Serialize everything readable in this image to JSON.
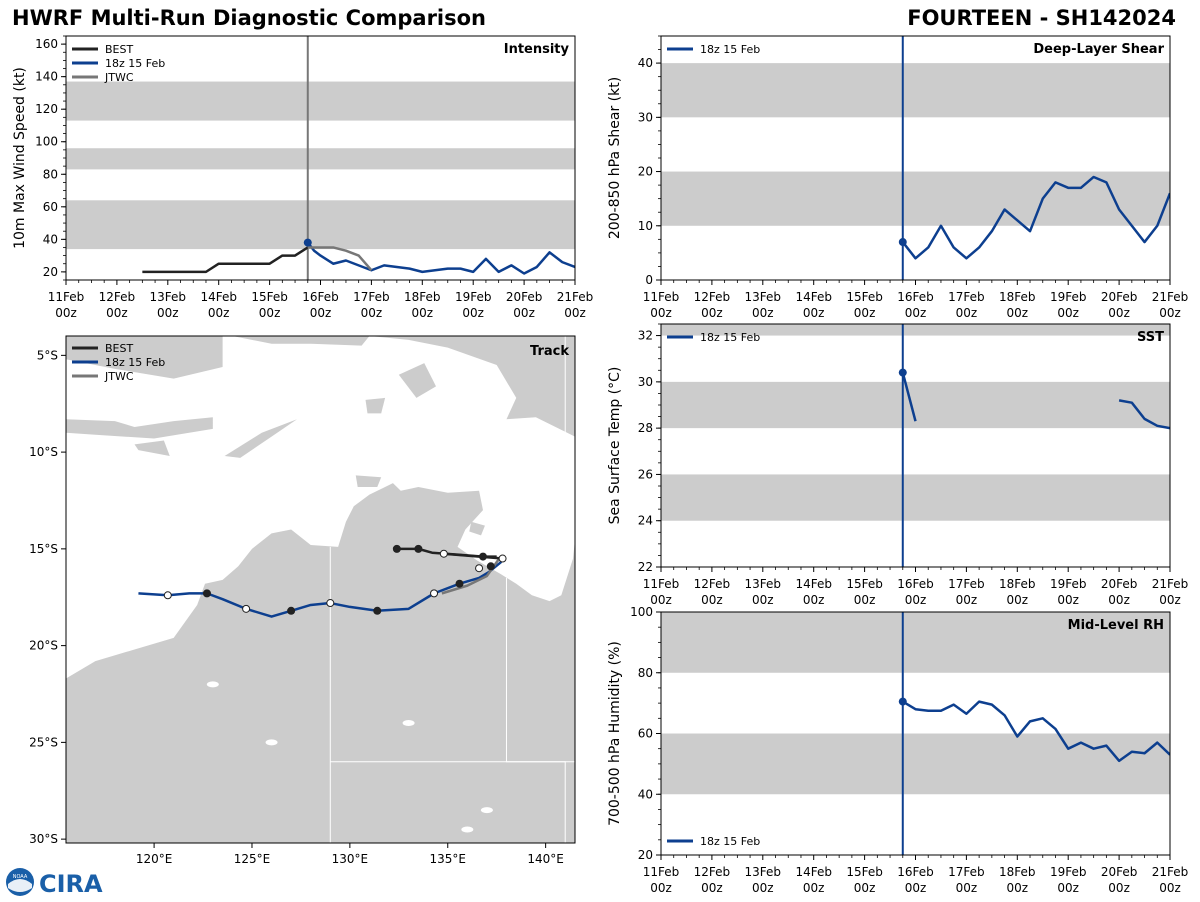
{
  "header": {
    "title_left": "HWRF Multi-Run Diagnostic Comparison",
    "title_right": "FOURTEEN - SH142024"
  },
  "logo": {
    "text": "CIRA",
    "badge_text": "NOAA"
  },
  "colors": {
    "best": "#222222",
    "hwrf_18z": "#0d3f8f",
    "jtwc": "#777777",
    "band": "#cccccc",
    "land": "#cccccc",
    "border": "#ffffff",
    "init_line_intensity": "#777777",
    "init_line_other": "#0d3f8f"
  },
  "time_axis": {
    "ticks": [
      {
        "line1": "11Feb",
        "line2": "00z"
      },
      {
        "line1": "12Feb",
        "line2": "00z"
      },
      {
        "line1": "13Feb",
        "line2": "00z"
      },
      {
        "line1": "14Feb",
        "line2": "00z"
      },
      {
        "line1": "15Feb",
        "line2": "00z"
      },
      {
        "line1": "16Feb",
        "line2": "00z"
      },
      {
        "line1": "17Feb",
        "line2": "00z"
      },
      {
        "line1": "18Feb",
        "line2": "00z"
      },
      {
        "line1": "19Feb",
        "line2": "00z"
      },
      {
        "line1": "20Feb",
        "line2": "00z"
      },
      {
        "line1": "21Feb",
        "line2": "00z"
      }
    ],
    "range": [
      0,
      240
    ],
    "units": "hours since 11Feb 00z",
    "init_hour": 114
  },
  "chart_data": [
    {
      "id": "intensity",
      "type": "line",
      "title": "Intensity",
      "xlabel": "",
      "ylabel": "10m Max Wind Speed (kt)",
      "ylim": [
        15,
        165
      ],
      "yticks": [
        20,
        40,
        60,
        80,
        100,
        120,
        140,
        160
      ],
      "bands": [
        [
          34,
          64
        ],
        [
          83,
          96
        ],
        [
          113,
          137
        ]
      ],
      "legend": [
        "BEST",
        "18z 15 Feb",
        "JTWC"
      ],
      "legend_position": "top-left",
      "init_marker": 38,
      "series": [
        {
          "name": "BEST",
          "color_key": "best",
          "x": [
            36,
            42,
            48,
            54,
            60,
            66,
            72,
            78,
            84,
            90,
            96,
            102,
            108,
            114
          ],
          "y": [
            20,
            20,
            20,
            20,
            20,
            20,
            25,
            25,
            25,
            25,
            25,
            30,
            30,
            35
          ]
        },
        {
          "name": "18z 15 Feb",
          "color_key": "hwrf_18z",
          "x": [
            114,
            117,
            120,
            126,
            132,
            138,
            144,
            150,
            156,
            162,
            168,
            174,
            180,
            186,
            192,
            198,
            204,
            210,
            216,
            222,
            228,
            234,
            240
          ],
          "y": [
            38,
            33,
            30,
            25,
            27,
            24,
            21,
            24,
            23,
            22,
            20,
            21,
            22,
            22,
            20,
            28,
            20,
            24,
            19,
            23,
            32,
            26,
            23
          ]
        },
        {
          "name": "JTWC",
          "color_key": "jtwc",
          "x": [
            114,
            120,
            126,
            132,
            138,
            144
          ],
          "y": [
            35,
            35,
            35,
            33,
            30,
            21
          ]
        }
      ]
    },
    {
      "id": "shear",
      "type": "line",
      "title": "Deep-Layer Shear",
      "xlabel": "",
      "ylabel": "200-850 hPa Shear (kt)",
      "ylim": [
        0,
        45
      ],
      "yticks": [
        0,
        10,
        20,
        30,
        40
      ],
      "bands": [
        [
          10,
          20
        ],
        [
          30,
          40
        ]
      ],
      "legend": [
        "18z 15 Feb"
      ],
      "legend_position": "top-left",
      "init_marker": 7,
      "series": [
        {
          "name": "18z 15 Feb",
          "color_key": "hwrf_18z",
          "x": [
            114,
            120,
            126,
            132,
            138,
            144,
            150,
            156,
            162,
            168,
            174,
            180,
            186,
            192,
            198,
            204,
            210,
            216,
            222,
            228,
            234,
            240
          ],
          "y": [
            7,
            4,
            6,
            10,
            6,
            4,
            6,
            9,
            13,
            11,
            9,
            15,
            18,
            17,
            17,
            19,
            18,
            13,
            10,
            7,
            10,
            16
          ]
        }
      ]
    },
    {
      "id": "sst",
      "type": "line",
      "title": "SST",
      "xlabel": "",
      "ylabel": "Sea Surface Temp (°C)",
      "ylim": [
        22,
        32.5
      ],
      "yticks": [
        22,
        24,
        26,
        28,
        30,
        32
      ],
      "bands": [
        [
          24,
          26
        ],
        [
          28,
          30
        ],
        [
          32,
          32.5
        ]
      ],
      "legend": [
        "18z 15 Feb"
      ],
      "legend_position": "top-left",
      "init_marker": 30.4,
      "series": [
        {
          "name": "18z 15 Feb",
          "color_key": "hwrf_18z",
          "segments": [
            {
              "x": [
                114,
                120
              ],
              "y": [
                30.4,
                28.3
              ]
            },
            {
              "x": [
                216,
                222,
                228,
                234,
                240
              ],
              "y": [
                29.2,
                29.1,
                28.4,
                28.1,
                28.0
              ]
            }
          ]
        }
      ]
    },
    {
      "id": "rh",
      "type": "line",
      "title": "Mid-Level RH",
      "xlabel": "",
      "ylabel": "700-500 hPa Humidity (%)",
      "ylim": [
        20,
        100
      ],
      "yticks": [
        20,
        40,
        60,
        80,
        100
      ],
      "bands": [
        [
          40,
          60
        ],
        [
          80,
          100
        ]
      ],
      "legend": [
        "18z 15 Feb"
      ],
      "legend_position": "bottom-left",
      "init_marker": 70.5,
      "series": [
        {
          "name": "18z 15 Feb",
          "color_key": "hwrf_18z",
          "x": [
            114,
            120,
            126,
            132,
            138,
            144,
            150,
            156,
            162,
            168,
            174,
            180,
            186,
            192,
            198,
            204,
            210,
            216,
            222,
            228,
            234,
            240
          ],
          "y": [
            70.5,
            68,
            67.5,
            67.5,
            69.5,
            66.5,
            70.5,
            69.5,
            66,
            59,
            64,
            65,
            61.5,
            55,
            57,
            55,
            56,
            51,
            54,
            53.5,
            57,
            53
          ]
        }
      ]
    },
    {
      "id": "track",
      "type": "line",
      "title": "Track",
      "xlabel": "",
      "ylabel": "",
      "xlim": [
        115.5,
        141.5
      ],
      "ylim": [
        -30.2,
        -4
      ],
      "xticks": [
        {
          "v": 120,
          "label": "120°E"
        },
        {
          "v": 125,
          "label": "125°E"
        },
        {
          "v": 130,
          "label": "130°E"
        },
        {
          "v": 135,
          "label": "135°E"
        },
        {
          "v": 140,
          "label": "140°E"
        }
      ],
      "yticks": [
        {
          "v": -5,
          "label": "5°S"
        },
        {
          "v": -10,
          "label": "10°S"
        },
        {
          "v": -15,
          "label": "15°S"
        },
        {
          "v": -20,
          "label": "20°S"
        },
        {
          "v": -25,
          "label": "25°S"
        },
        {
          "v": -30,
          "label": "30°S"
        }
      ],
      "legend": [
        "BEST",
        "18z 15 Feb",
        "JTWC"
      ],
      "legend_position": "top-left",
      "series": [
        {
          "name": "BEST",
          "color_key": "best",
          "lon": [
            132.4,
            133.5,
            134.2,
            135.5,
            136.8,
            137.5
          ],
          "lat": [
            -15.0,
            -15.0,
            -15.2,
            -15.3,
            -15.4,
            -15.4
          ],
          "filled_markers": [
            [
              132.4,
              -15.0
            ],
            [
              133.5,
              -15.0
            ],
            [
              136.8,
              -15.4
            ]
          ]
        },
        {
          "name": "18z 15 Feb",
          "color_key": "hwrf_18z",
          "lon": [
            137.8,
            137.7,
            137.1,
            136.6,
            135.6,
            134.3,
            133.0,
            131.4,
            130.0,
            129.0,
            128.0,
            127.0,
            126.0,
            124.7,
            123.5,
            122.7,
            121.8,
            120.7,
            119.2
          ],
          "lat": [
            -15.5,
            -15.7,
            -16.2,
            -16.5,
            -16.8,
            -17.3,
            -18.1,
            -18.2,
            -18.0,
            -17.8,
            -17.9,
            -18.2,
            -18.5,
            -18.1,
            -17.6,
            -17.3,
            -17.3,
            -17.4,
            -17.3
          ],
          "open_markers": [
            [
              137.8,
              -15.5
            ],
            [
              136.6,
              -16.0
            ],
            [
              134.3,
              -17.3
            ],
            [
              129.0,
              -17.8
            ],
            [
              124.7,
              -18.1
            ],
            [
              120.7,
              -17.4
            ]
          ],
          "filled_markers": [
            [
              135.6,
              -16.8
            ],
            [
              137.2,
              -15.9
            ],
            [
              131.4,
              -18.2
            ],
            [
              127.0,
              -18.2
            ],
            [
              122.7,
              -17.3
            ]
          ]
        },
        {
          "name": "JTWC",
          "color_key": "jtwc",
          "lon": [
            137.7,
            137.0,
            136.0,
            134.7
          ],
          "lat": [
            -15.4,
            -16.4,
            -16.9,
            -17.3
          ]
        },
        {
          "name": "BEST extension",
          "color_key": "best",
          "lon": [
            134.8,
            137.8
          ],
          "lat": [
            -15.25,
            -15.5
          ],
          "open_markers": [
            [
              134.8,
              -15.25
            ]
          ]
        }
      ]
    }
  ]
}
